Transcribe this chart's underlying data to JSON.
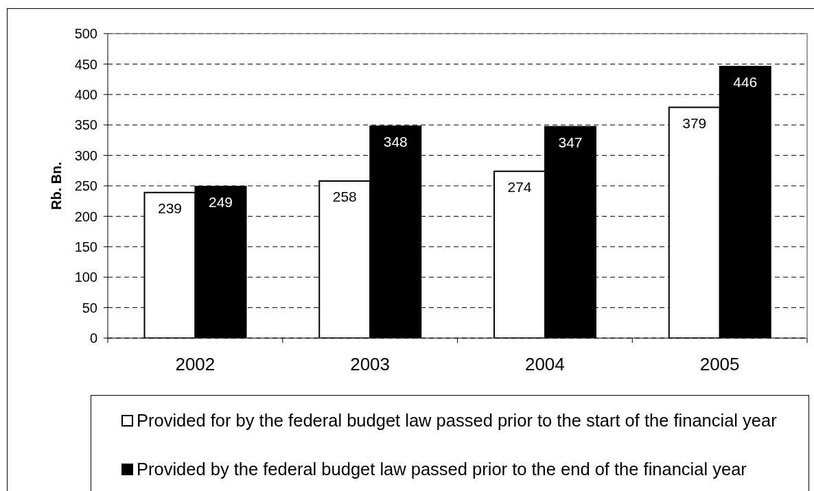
{
  "chart_data": {
    "type": "bar",
    "ylabel": "Rb. Bn.",
    "categories": [
      "2002",
      "2003",
      "2004",
      "2005"
    ],
    "series": [
      {
        "name": "Provided for by the federal budget law passed prior to the start of the financial year",
        "color": "#ffffff",
        "values": [
          239,
          258,
          274,
          379
        ]
      },
      {
        "name": "Provided by the federal budget law passed prior to the end of the financial year",
        "color": "#000000",
        "values": [
          249,
          348,
          347,
          446
        ]
      }
    ],
    "ylim": [
      0,
      500
    ],
    "yticks": [
      0,
      50,
      100,
      150,
      200,
      250,
      300,
      350,
      400,
      450,
      500
    ],
    "grid": "y",
    "legend": "bottom",
    "data_labels": true
  }
}
